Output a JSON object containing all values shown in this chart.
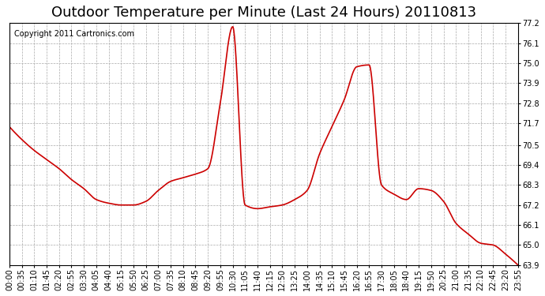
{
  "title": "Outdoor Temperature per Minute (Last 24 Hours) 20110813",
  "copyright_text": "Copyright 2011 Cartronics.com",
  "line_color": "#cc0000",
  "background_color": "#ffffff",
  "plot_bg_color": "#ffffff",
  "grid_color": "#aaaaaa",
  "grid_style": "--",
  "ylim": [
    63.9,
    77.2
  ],
  "yticks": [
    63.9,
    65.0,
    66.1,
    67.2,
    68.3,
    69.4,
    70.5,
    71.7,
    72.8,
    73.9,
    75.0,
    76.1,
    77.2
  ],
  "xtick_labels": [
    "00:00",
    "00:35",
    "01:10",
    "01:45",
    "02:20",
    "02:55",
    "03:30",
    "04:05",
    "04:40",
    "05:15",
    "05:50",
    "06:25",
    "07:00",
    "07:35",
    "08:10",
    "08:45",
    "09:20",
    "09:55",
    "10:30",
    "11:05",
    "11:40",
    "12:15",
    "12:50",
    "13:25",
    "14:00",
    "14:35",
    "15:10",
    "15:45",
    "16:20",
    "16:55",
    "17:30",
    "18:05",
    "18:40",
    "19:15",
    "19:50",
    "20:25",
    "21:00",
    "21:35",
    "22:10",
    "22:45",
    "23:20",
    "23:55"
  ],
  "title_fontsize": 13,
  "tick_fontsize": 7,
  "copyright_fontsize": 7,
  "line_width": 1.2,
  "key_times": [
    0,
    35,
    70,
    105,
    140,
    175,
    210,
    245,
    280,
    315,
    350,
    385,
    420,
    455,
    490,
    525,
    560,
    595,
    630,
    665,
    700,
    735,
    770,
    805,
    840,
    875,
    910,
    945,
    980,
    1015,
    1050,
    1085,
    1120,
    1155,
    1190,
    1225,
    1260,
    1295,
    1330,
    1365,
    1400,
    1435
  ],
  "key_values": [
    71.5,
    70.8,
    70.2,
    69.7,
    69.2,
    68.6,
    68.1,
    67.5,
    67.3,
    67.2,
    67.2,
    67.4,
    68.0,
    68.5,
    68.7,
    68.9,
    69.2,
    72.8,
    77.0,
    67.2,
    67.0,
    67.1,
    67.2,
    67.5,
    68.0,
    70.0,
    71.5,
    73.0,
    74.8,
    74.9,
    68.3,
    67.8,
    67.5,
    68.1,
    68.0,
    67.4,
    66.2,
    65.6,
    65.1,
    65.0,
    64.5,
    63.9
  ]
}
